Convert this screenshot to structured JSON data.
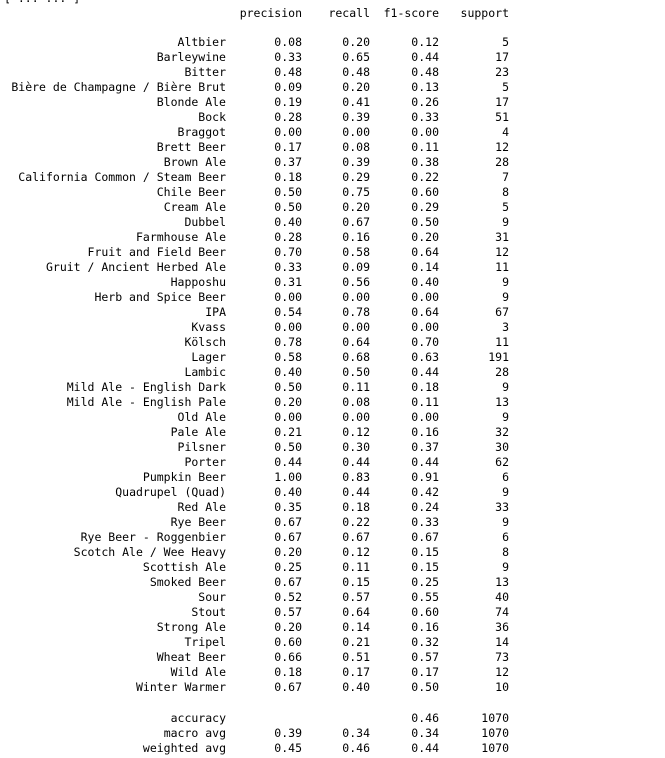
{
  "cut_line": "[ ... ... ]",
  "headers": [
    "precision",
    "recall",
    "f1-score",
    "support"
  ],
  "rows": [
    {
      "label": "Altbier",
      "precision": "0.08",
      "recall": "0.20",
      "f1": "0.12",
      "support": "5"
    },
    {
      "label": "Barleywine",
      "precision": "0.33",
      "recall": "0.65",
      "f1": "0.44",
      "support": "17"
    },
    {
      "label": "Bitter",
      "precision": "0.48",
      "recall": "0.48",
      "f1": "0.48",
      "support": "23"
    },
    {
      "label": "Bière de Champagne / Bière Brut",
      "precision": "0.09",
      "recall": "0.20",
      "f1": "0.13",
      "support": "5"
    },
    {
      "label": "Blonde Ale",
      "precision": "0.19",
      "recall": "0.41",
      "f1": "0.26",
      "support": "17"
    },
    {
      "label": "Bock",
      "precision": "0.28",
      "recall": "0.39",
      "f1": "0.33",
      "support": "51"
    },
    {
      "label": "Braggot",
      "precision": "0.00",
      "recall": "0.00",
      "f1": "0.00",
      "support": "4"
    },
    {
      "label": "Brett Beer",
      "precision": "0.17",
      "recall": "0.08",
      "f1": "0.11",
      "support": "12"
    },
    {
      "label": "Brown Ale",
      "precision": "0.37",
      "recall": "0.39",
      "f1": "0.38",
      "support": "28"
    },
    {
      "label": "California Common / Steam Beer",
      "precision": "0.18",
      "recall": "0.29",
      "f1": "0.22",
      "support": "7"
    },
    {
      "label": "Chile Beer",
      "precision": "0.50",
      "recall": "0.75",
      "f1": "0.60",
      "support": "8"
    },
    {
      "label": "Cream Ale",
      "precision": "0.50",
      "recall": "0.20",
      "f1": "0.29",
      "support": "5"
    },
    {
      "label": "Dubbel",
      "precision": "0.40",
      "recall": "0.67",
      "f1": "0.50",
      "support": "9"
    },
    {
      "label": "Farmhouse Ale",
      "precision": "0.28",
      "recall": "0.16",
      "f1": "0.20",
      "support": "31"
    },
    {
      "label": "Fruit and Field Beer",
      "precision": "0.70",
      "recall": "0.58",
      "f1": "0.64",
      "support": "12"
    },
    {
      "label": "Gruit / Ancient Herbed Ale",
      "precision": "0.33",
      "recall": "0.09",
      "f1": "0.14",
      "support": "11"
    },
    {
      "label": "Happoshu",
      "precision": "0.31",
      "recall": "0.56",
      "f1": "0.40",
      "support": "9"
    },
    {
      "label": "Herb and Spice Beer",
      "precision": "0.00",
      "recall": "0.00",
      "f1": "0.00",
      "support": "9"
    },
    {
      "label": "IPA",
      "precision": "0.54",
      "recall": "0.78",
      "f1": "0.64",
      "support": "67"
    },
    {
      "label": "Kvass",
      "precision": "0.00",
      "recall": "0.00",
      "f1": "0.00",
      "support": "3"
    },
    {
      "label": "Kölsch",
      "precision": "0.78",
      "recall": "0.64",
      "f1": "0.70",
      "support": "11"
    },
    {
      "label": "Lager",
      "precision": "0.58",
      "recall": "0.68",
      "f1": "0.63",
      "support": "191"
    },
    {
      "label": "Lambic",
      "precision": "0.40",
      "recall": "0.50",
      "f1": "0.44",
      "support": "28"
    },
    {
      "label": "Mild Ale - English Dark",
      "precision": "0.50",
      "recall": "0.11",
      "f1": "0.18",
      "support": "9"
    },
    {
      "label": "Mild Ale - English Pale",
      "precision": "0.20",
      "recall": "0.08",
      "f1": "0.11",
      "support": "13"
    },
    {
      "label": "Old Ale",
      "precision": "0.00",
      "recall": "0.00",
      "f1": "0.00",
      "support": "9"
    },
    {
      "label": "Pale Ale",
      "precision": "0.21",
      "recall": "0.12",
      "f1": "0.16",
      "support": "32"
    },
    {
      "label": "Pilsner",
      "precision": "0.50",
      "recall": "0.30",
      "f1": "0.37",
      "support": "30"
    },
    {
      "label": "Porter",
      "precision": "0.44",
      "recall": "0.44",
      "f1": "0.44",
      "support": "62"
    },
    {
      "label": "Pumpkin Beer",
      "precision": "1.00",
      "recall": "0.83",
      "f1": "0.91",
      "support": "6"
    },
    {
      "label": "Quadrupel (Quad)",
      "precision": "0.40",
      "recall": "0.44",
      "f1": "0.42",
      "support": "9"
    },
    {
      "label": "Red Ale",
      "precision": "0.35",
      "recall": "0.18",
      "f1": "0.24",
      "support": "33"
    },
    {
      "label": "Rye Beer",
      "precision": "0.67",
      "recall": "0.22",
      "f1": "0.33",
      "support": "9"
    },
    {
      "label": "Rye Beer - Roggenbier",
      "precision": "0.67",
      "recall": "0.67",
      "f1": "0.67",
      "support": "6"
    },
    {
      "label": "Scotch Ale / Wee Heavy",
      "precision": "0.20",
      "recall": "0.12",
      "f1": "0.15",
      "support": "8"
    },
    {
      "label": "Scottish Ale",
      "precision": "0.25",
      "recall": "0.11",
      "f1": "0.15",
      "support": "9"
    },
    {
      "label": "Smoked Beer",
      "precision": "0.67",
      "recall": "0.15",
      "f1": "0.25",
      "support": "13"
    },
    {
      "label": "Sour",
      "precision": "0.52",
      "recall": "0.57",
      "f1": "0.55",
      "support": "40"
    },
    {
      "label": "Stout",
      "precision": "0.57",
      "recall": "0.64",
      "f1": "0.60",
      "support": "74"
    },
    {
      "label": "Strong Ale",
      "precision": "0.20",
      "recall": "0.14",
      "f1": "0.16",
      "support": "36"
    },
    {
      "label": "Tripel",
      "precision": "0.60",
      "recall": "0.21",
      "f1": "0.32",
      "support": "14"
    },
    {
      "label": "Wheat Beer",
      "precision": "0.66",
      "recall": "0.51",
      "f1": "0.57",
      "support": "73"
    },
    {
      "label": "Wild Ale",
      "precision": "0.18",
      "recall": "0.17",
      "f1": "0.17",
      "support": "12"
    },
    {
      "label": "Winter Warmer",
      "precision": "0.67",
      "recall": "0.40",
      "f1": "0.50",
      "support": "10"
    }
  ],
  "summary": [
    {
      "label": "accuracy",
      "precision": "",
      "recall": "",
      "f1": "0.46",
      "support": "1070"
    },
    {
      "label": "macro avg",
      "precision": "0.39",
      "recall": "0.34",
      "f1": "0.34",
      "support": "1070"
    },
    {
      "label": "weighted avg",
      "precision": "0.45",
      "recall": "0.46",
      "f1": "0.44",
      "support": "1070"
    }
  ]
}
